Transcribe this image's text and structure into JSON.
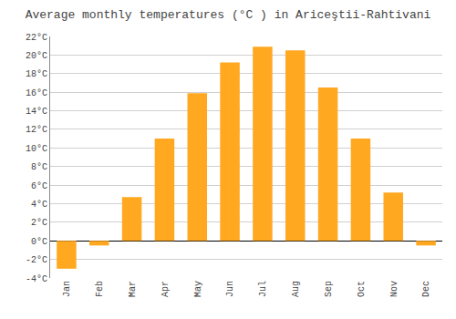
{
  "chart_data": {
    "type": "bar",
    "title": "Average monthly temperatures (°C ) in Ariceştii-Rahtivani",
    "categories": [
      "Jan",
      "Feb",
      "Mar",
      "Apr",
      "May",
      "Jun",
      "Jul",
      "Aug",
      "Sep",
      "Oct",
      "Nov",
      "Dec"
    ],
    "values": [
      -3.0,
      -0.5,
      4.7,
      11.0,
      15.9,
      19.2,
      20.9,
      20.5,
      16.5,
      11.0,
      5.2,
      -0.5
    ],
    "color": "#FFA820",
    "ylim": [
      -4,
      22
    ],
    "yticks": [
      {
        "value": -4,
        "label": "-4°C"
      },
      {
        "value": -2,
        "label": "-2°C"
      },
      {
        "value": 0,
        "label": "0°C"
      },
      {
        "value": 2,
        "label": "2°C"
      },
      {
        "value": 4,
        "label": "4°C"
      },
      {
        "value": 6,
        "label": "6°C"
      },
      {
        "value": 8,
        "label": "8°C"
      },
      {
        "value": 10,
        "label": "10°C"
      },
      {
        "value": 12,
        "label": "12°C"
      },
      {
        "value": 14,
        "label": "14°C"
      },
      {
        "value": 16,
        "label": "16°C"
      },
      {
        "value": 18,
        "label": "18°C"
      },
      {
        "value": 20,
        "label": "20°C"
      },
      {
        "value": 22,
        "label": "22°C"
      }
    ],
    "grid": true
  }
}
